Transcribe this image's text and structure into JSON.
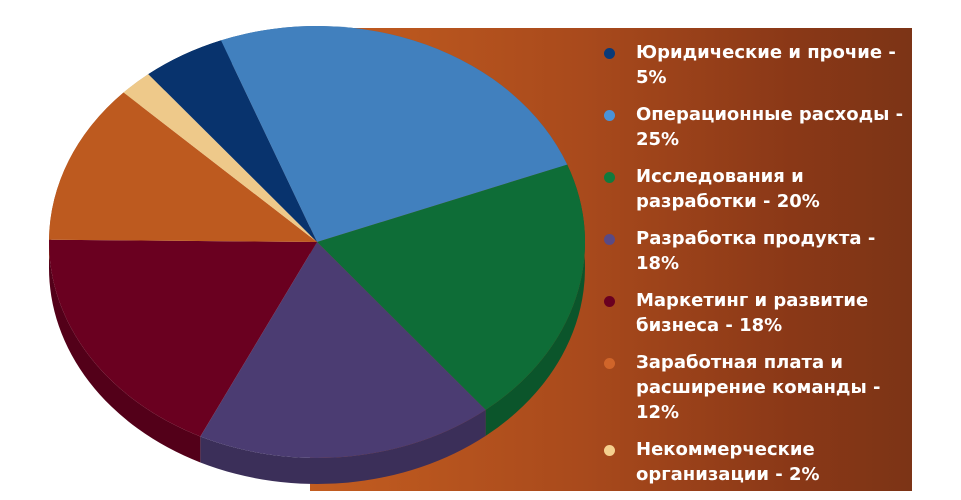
{
  "chart_data": {
    "type": "pie",
    "slices": [
      {
        "label": "Операционные расходы - 25%",
        "value": 25,
        "color": "#4180be"
      },
      {
        "label": "Исследования и разработки  - 20%",
        "value": 20,
        "color": "#0e6d37"
      },
      {
        "label": "Разработка продукта - 18%",
        "value": 18,
        "color": "#4b3c72"
      },
      {
        "label": "Маркетинг и развитие бизнеса - 18%",
        "value": 18,
        "color": "#6a0020"
      },
      {
        "label": "Заработная плата и расширение команды - 12%",
        "value": 12,
        "color": "#bd5a1f"
      },
      {
        "label": "Некоммерческие организации - 2%",
        "value": 2,
        "color": "#eec98a"
      },
      {
        "label": "Юридические и прочие  - 5%",
        "value": 5,
        "color": "#08336d"
      }
    ],
    "legend": {
      "placement": "right",
      "items": [
        {
          "text": "Юридические и прочие  - 5%",
          "color": "#0a3a78"
        },
        {
          "text": "Операционные расходы - 25%",
          "color": "#4a92d8"
        },
        {
          "text": "Исследования и разработки  - 20%",
          "color": "#117a3d"
        },
        {
          "text": "Разработка продукта - 18%",
          "color": "#5a4a85"
        },
        {
          "text": "Маркетинг и развитие бизнеса - 18%",
          "color": "#6a0020"
        },
        {
          "text": "Заработная плата и расширение команды - 12%",
          "color": "#d0652a"
        },
        {
          "text": "Некоммерческие организации - 2%",
          "color": "#f5d08e"
        }
      ]
    }
  }
}
